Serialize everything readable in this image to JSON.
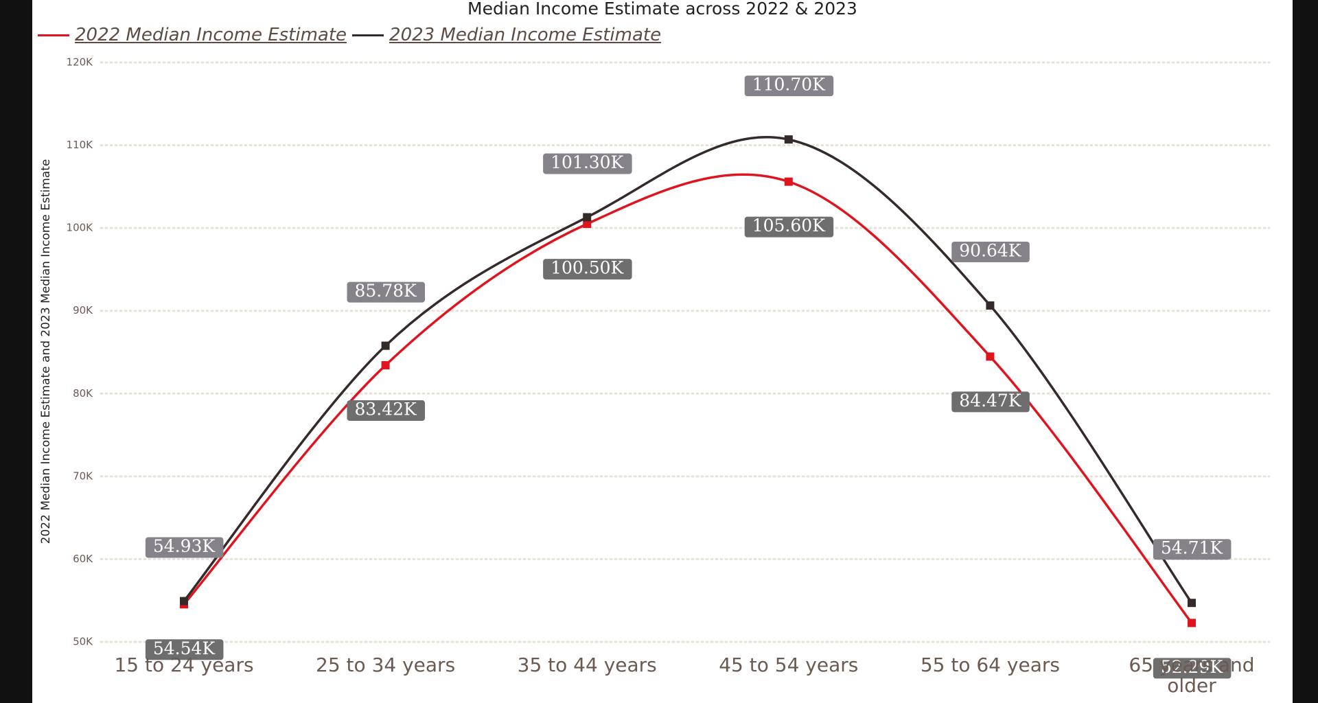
{
  "chart_data": {
    "type": "line",
    "title": "Median Income Estimate across 2022 & 2023",
    "y_label": "2022 Median Income Estimate and 2023 Median Income Estimate",
    "categories": [
      "15 to 24 years",
      "25 to 34 years",
      "35 to 44 years",
      "45 to 54 years",
      "55 to 64 years",
      "65 years and older"
    ],
    "series": [
      {
        "name": "2022 Median Income Estimate",
        "color": "#e0141e",
        "label_color": "#6e6e6e",
        "values": [
          54540,
          83420,
          100500,
          105600,
          84470,
          52290
        ],
        "value_labels": [
          "54.54K",
          "83.42K",
          "100.50K",
          "105.60K",
          "84.47K",
          "52.29K"
        ]
      },
      {
        "name": "2023 Median Income Estimate",
        "color": "#352a2a",
        "label_color": "#85828a",
        "values": [
          54930,
          85780,
          101300,
          110700,
          90640,
          54710
        ],
        "value_labels": [
          "54.93K",
          "85.78K",
          "101.30K",
          "110.70K",
          "90.64K",
          "54.71K"
        ]
      }
    ],
    "ylim": [
      50000,
      120000
    ],
    "yticks": [
      {
        "value": 50000,
        "label": "50K"
      },
      {
        "value": 60000,
        "label": "60K"
      },
      {
        "value": 70000,
        "label": "70K"
      },
      {
        "value": 80000,
        "label": "80K"
      },
      {
        "value": 90000,
        "label": "90K"
      },
      {
        "value": 100000,
        "label": "100K"
      },
      {
        "value": 110000,
        "label": "110K"
      },
      {
        "value": 120000,
        "label": "120K"
      }
    ],
    "grid": true
  }
}
